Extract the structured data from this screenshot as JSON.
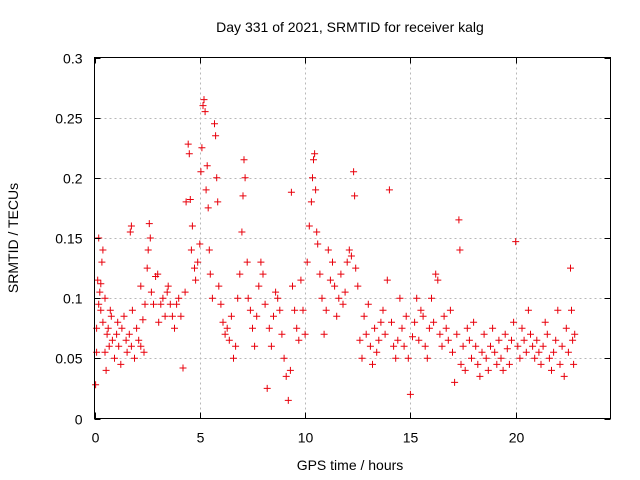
{
  "chart_data": {
    "type": "scatter",
    "title": "Day 331 of 2021, SRMTID for receiver kalg",
    "xlabel": "GPS time / hours",
    "ylabel": "SRMTID / TECUs",
    "xlim": [
      0,
      24.5
    ],
    "ylim": [
      0,
      0.3
    ],
    "x_ticks": [
      0,
      5,
      10,
      15,
      20
    ],
    "x_tick_labels": [
      "0",
      "5",
      "10",
      "15",
      "20"
    ],
    "y_ticks": [
      0,
      0.05,
      0.1,
      0.15,
      0.2,
      0.25,
      0.3
    ],
    "y_tick_labels": [
      "0",
      "0.05",
      "0.1",
      "0.15",
      "0.2",
      "0.25",
      "0.3"
    ],
    "grid": true,
    "marker": "plus",
    "color": "#e8000b",
    "series": [
      {
        "name": "SRMTID",
        "points": [
          [
            0.05,
            0.028
          ],
          [
            0.1,
            0.075
          ],
          [
            0.15,
            0.115
          ],
          [
            0.2,
            0.15
          ],
          [
            0.25,
            0.105
          ],
          [
            0.3,
            0.09
          ],
          [
            0.35,
            0.13
          ],
          [
            0.4,
            0.08
          ],
          [
            0.1,
            0.055
          ],
          [
            0.2,
            0.095
          ],
          [
            0.3,
            0.112
          ],
          [
            0.4,
            0.14
          ],
          [
            0.5,
            0.1
          ],
          [
            0.6,
            0.07
          ],
          [
            0.7,
            0.06
          ],
          [
            0.8,
            0.085
          ],
          [
            0.5,
            0.055
          ],
          [
            0.55,
            0.04
          ],
          [
            0.65,
            0.075
          ],
          [
            0.75,
            0.09
          ],
          [
            0.85,
            0.065
          ],
          [
            0.95,
            0.05
          ],
          [
            1.05,
            0.07
          ],
          [
            1.1,
            0.08
          ],
          [
            1.15,
            0.06
          ],
          [
            1.25,
            0.045
          ],
          [
            1.3,
            0.075
          ],
          [
            1.4,
            0.085
          ],
          [
            1.5,
            0.065
          ],
          [
            1.55,
            0.055
          ],
          [
            1.65,
            0.07
          ],
          [
            1.75,
            0.06
          ],
          [
            1.8,
            0.09
          ],
          [
            1.9,
            0.05
          ],
          [
            2.0,
            0.075
          ],
          [
            2.1,
            0.065
          ],
          [
            2.2,
            0.06
          ],
          [
            2.3,
            0.082
          ],
          [
            2.35,
            0.055
          ],
          [
            1.7,
            0.155
          ],
          [
            1.75,
            0.16
          ],
          [
            2.2,
            0.11
          ],
          [
            2.4,
            0.095
          ],
          [
            2.5,
            0.125
          ],
          [
            2.55,
            0.14
          ],
          [
            2.6,
            0.162
          ],
          [
            2.65,
            0.15
          ],
          [
            2.7,
            0.105
          ],
          [
            2.8,
            0.095
          ],
          [
            2.9,
            0.118
          ],
          [
            3.0,
            0.12
          ],
          [
            3.05,
            0.08
          ],
          [
            3.15,
            0.095
          ],
          [
            3.25,
            0.1
          ],
          [
            3.35,
            0.085
          ],
          [
            3.45,
            0.105
          ],
          [
            3.5,
            0.11
          ],
          [
            3.6,
            0.095
          ],
          [
            3.7,
            0.085
          ],
          [
            3.8,
            0.075
          ],
          [
            3.9,
            0.095
          ],
          [
            4.0,
            0.1
          ],
          [
            4.1,
            0.085
          ],
          [
            4.2,
            0.042
          ],
          [
            4.3,
            0.105
          ],
          [
            4.35,
            0.18
          ],
          [
            4.45,
            0.228
          ],
          [
            4.5,
            0.22
          ],
          [
            4.55,
            0.182
          ],
          [
            4.6,
            0.14
          ],
          [
            4.65,
            0.16
          ],
          [
            4.75,
            0.125
          ],
          [
            4.8,
            0.115
          ],
          [
            4.9,
            0.13
          ],
          [
            5.0,
            0.145
          ],
          [
            5.05,
            0.205
          ],
          [
            5.1,
            0.225
          ],
          [
            5.15,
            0.26
          ],
          [
            5.2,
            0.265
          ],
          [
            5.25,
            0.255
          ],
          [
            5.3,
            0.19
          ],
          [
            5.35,
            0.21
          ],
          [
            5.4,
            0.175
          ],
          [
            5.45,
            0.14
          ],
          [
            5.5,
            0.12
          ],
          [
            5.6,
            0.1
          ],
          [
            5.7,
            0.245
          ],
          [
            5.75,
            0.235
          ],
          [
            5.8,
            0.2
          ],
          [
            5.85,
            0.18
          ],
          [
            5.9,
            0.11
          ],
          [
            6.0,
            0.095
          ],
          [
            6.1,
            0.08
          ],
          [
            6.2,
            0.07
          ],
          [
            6.3,
            0.075
          ],
          [
            6.4,
            0.065
          ],
          [
            6.5,
            0.085
          ],
          [
            6.6,
            0.05
          ],
          [
            6.7,
            0.06
          ],
          [
            6.8,
            0.1
          ],
          [
            6.9,
            0.12
          ],
          [
            7.0,
            0.155
          ],
          [
            7.05,
            0.185
          ],
          [
            7.1,
            0.215
          ],
          [
            7.15,
            0.2
          ],
          [
            7.25,
            0.13
          ],
          [
            7.3,
            0.1
          ],
          [
            7.4,
            0.09
          ],
          [
            7.5,
            0.075
          ],
          [
            7.6,
            0.06
          ],
          [
            7.7,
            0.085
          ],
          [
            7.8,
            0.11
          ],
          [
            7.9,
            0.13
          ],
          [
            8.0,
            0.12
          ],
          [
            8.1,
            0.095
          ],
          [
            8.2,
            0.025
          ],
          [
            8.3,
            0.075
          ],
          [
            8.4,
            0.06
          ],
          [
            8.5,
            0.085
          ],
          [
            8.6,
            0.105
          ],
          [
            8.7,
            0.1
          ],
          [
            8.8,
            0.09
          ],
          [
            8.9,
            0.07
          ],
          [
            9.0,
            0.05
          ],
          [
            9.1,
            0.035
          ],
          [
            9.2,
            0.015
          ],
          [
            9.3,
            0.04
          ],
          [
            9.35,
            0.188
          ],
          [
            9.4,
            0.11
          ],
          [
            9.5,
            0.09
          ],
          [
            9.6,
            0.075
          ],
          [
            9.7,
            0.065
          ],
          [
            9.8,
            0.115
          ],
          [
            9.9,
            0.09
          ],
          [
            10.0,
            0.07
          ],
          [
            10.1,
            0.13
          ],
          [
            10.2,
            0.16
          ],
          [
            10.3,
            0.18
          ],
          [
            10.35,
            0.2
          ],
          [
            10.4,
            0.215
          ],
          [
            10.45,
            0.22
          ],
          [
            10.5,
            0.19
          ],
          [
            10.55,
            0.155
          ],
          [
            10.6,
            0.145
          ],
          [
            10.7,
            0.12
          ],
          [
            10.8,
            0.1
          ],
          [
            10.9,
            0.07
          ],
          [
            11.0,
            0.09
          ],
          [
            11.1,
            0.14
          ],
          [
            11.2,
            0.115
          ],
          [
            11.3,
            0.13
          ],
          [
            11.4,
            0.11
          ],
          [
            11.5,
            0.085
          ],
          [
            11.6,
            0.1
          ],
          [
            11.7,
            0.12
          ],
          [
            11.8,
            0.095
          ],
          [
            11.9,
            0.105
          ],
          [
            12.0,
            0.13
          ],
          [
            12.1,
            0.14
          ],
          [
            12.2,
            0.135
          ],
          [
            12.3,
            0.205
          ],
          [
            12.35,
            0.185
          ],
          [
            12.4,
            0.125
          ],
          [
            12.5,
            0.11
          ],
          [
            12.6,
            0.065
          ],
          [
            12.7,
            0.05
          ],
          [
            12.8,
            0.085
          ],
          [
            12.9,
            0.07
          ],
          [
            13.0,
            0.095
          ],
          [
            13.1,
            0.06
          ],
          [
            13.2,
            0.045
          ],
          [
            13.3,
            0.075
          ],
          [
            13.4,
            0.055
          ],
          [
            13.5,
            0.065
          ],
          [
            13.6,
            0.08
          ],
          [
            13.7,
            0.09
          ],
          [
            13.8,
            0.07
          ],
          [
            13.9,
            0.115
          ],
          [
            14.0,
            0.19
          ],
          [
            14.1,
            0.08
          ],
          [
            14.2,
            0.06
          ],
          [
            14.3,
            0.05
          ],
          [
            14.4,
            0.065
          ],
          [
            14.5,
            0.1
          ],
          [
            14.6,
            0.075
          ],
          [
            14.7,
            0.06
          ],
          [
            14.8,
            0.085
          ],
          [
            14.9,
            0.05
          ],
          [
            15.0,
            0.02
          ],
          [
            15.1,
            0.068
          ],
          [
            15.2,
            0.08
          ],
          [
            15.3,
            0.1
          ],
          [
            15.4,
            0.065
          ],
          [
            15.5,
            0.09
          ],
          [
            15.6,
            0.085
          ],
          [
            15.7,
            0.06
          ],
          [
            15.8,
            0.05
          ],
          [
            15.9,
            0.075
          ],
          [
            16.0,
            0.1
          ],
          [
            16.1,
            0.08
          ],
          [
            16.2,
            0.12
          ],
          [
            16.3,
            0.115
          ],
          [
            16.4,
            0.07
          ],
          [
            16.5,
            0.06
          ],
          [
            16.6,
            0.085
          ],
          [
            16.7,
            0.075
          ],
          [
            16.8,
            0.065
          ],
          [
            16.9,
            0.09
          ],
          [
            17.0,
            0.055
          ],
          [
            17.1,
            0.03
          ],
          [
            17.2,
            0.07
          ],
          [
            17.3,
            0.165
          ],
          [
            17.35,
            0.14
          ],
          [
            17.4,
            0.045
          ],
          [
            17.5,
            0.06
          ],
          [
            17.6,
            0.04
          ],
          [
            17.7,
            0.075
          ],
          [
            17.8,
            0.065
          ],
          [
            17.9,
            0.05
          ],
          [
            18.0,
            0.08
          ],
          [
            18.1,
            0.06
          ],
          [
            18.2,
            0.045
          ],
          [
            18.3,
            0.035
          ],
          [
            18.4,
            0.055
          ],
          [
            18.5,
            0.07
          ],
          [
            18.6,
            0.05
          ],
          [
            18.7,
            0.04
          ],
          [
            18.8,
            0.06
          ],
          [
            18.9,
            0.075
          ],
          [
            19.0,
            0.055
          ],
          [
            19.1,
            0.045
          ],
          [
            19.2,
            0.065
          ],
          [
            19.3,
            0.05
          ],
          [
            19.4,
            0.04
          ],
          [
            19.5,
            0.07
          ],
          [
            19.6,
            0.058
          ],
          [
            19.7,
            0.045
          ],
          [
            19.8,
            0.065
          ],
          [
            19.9,
            0.08
          ],
          [
            20.0,
            0.147
          ],
          [
            20.1,
            0.06
          ],
          [
            20.2,
            0.05
          ],
          [
            20.3,
            0.075
          ],
          [
            20.4,
            0.065
          ],
          [
            20.5,
            0.055
          ],
          [
            20.6,
            0.09
          ],
          [
            20.7,
            0.07
          ],
          [
            20.8,
            0.06
          ],
          [
            20.9,
            0.05
          ],
          [
            21.0,
            0.065
          ],
          [
            21.1,
            0.055
          ],
          [
            21.2,
            0.045
          ],
          [
            21.3,
            0.06
          ],
          [
            21.4,
            0.08
          ],
          [
            21.5,
            0.07
          ],
          [
            21.6,
            0.05
          ],
          [
            21.7,
            0.04
          ],
          [
            21.8,
            0.055
          ],
          [
            21.9,
            0.065
          ],
          [
            22.0,
            0.09
          ],
          [
            22.1,
            0.045
          ],
          [
            22.2,
            0.06
          ],
          [
            22.3,
            0.035
          ],
          [
            22.4,
            0.075
          ],
          [
            22.5,
            0.055
          ],
          [
            22.6,
            0.125
          ],
          [
            22.65,
            0.09
          ],
          [
            22.7,
            0.065
          ],
          [
            22.75,
            0.045
          ],
          [
            22.8,
            0.07
          ]
        ]
      }
    ]
  }
}
